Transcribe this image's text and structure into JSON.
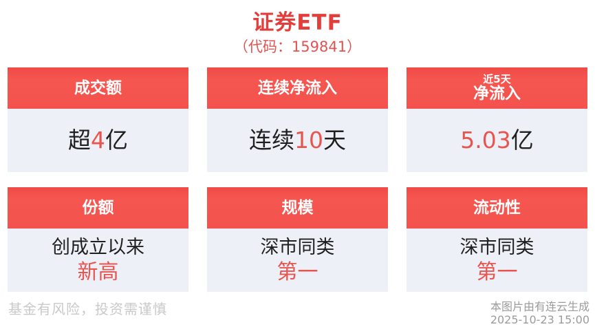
{
  "page": {
    "title": "证券ETF",
    "subtitle": "（代码：159841）"
  },
  "cards": [
    {
      "header": "成交额",
      "prefix": "超",
      "highlight": "4",
      "suffix": "亿"
    },
    {
      "header": "连续净流入",
      "prefix": "连续",
      "highlight": "10",
      "suffix": "天"
    },
    {
      "header_top": "近5天",
      "header": "净流入",
      "prefix": "",
      "highlight": "5.03",
      "suffix": "亿"
    },
    {
      "header": "份额",
      "line1": "创成立以来",
      "line2": "新高"
    },
    {
      "header": "规模",
      "line1": "深市同类",
      "line2": "第一"
    },
    {
      "header": "流动性",
      "line1": "深市同类",
      "line2": "第一"
    }
  ],
  "footer": {
    "disclaimer": "基金有风险，投资需谨慎",
    "source": "本图片由有连云生成",
    "timestamp": "2025-10-23 15:00"
  },
  "colors": {
    "header_red": "#f4524e",
    "title_red": "#e23f3c",
    "highlight_red": "#e8544e",
    "card_body_bg": "#eef0f7",
    "page_bg": "#ffffff"
  }
}
